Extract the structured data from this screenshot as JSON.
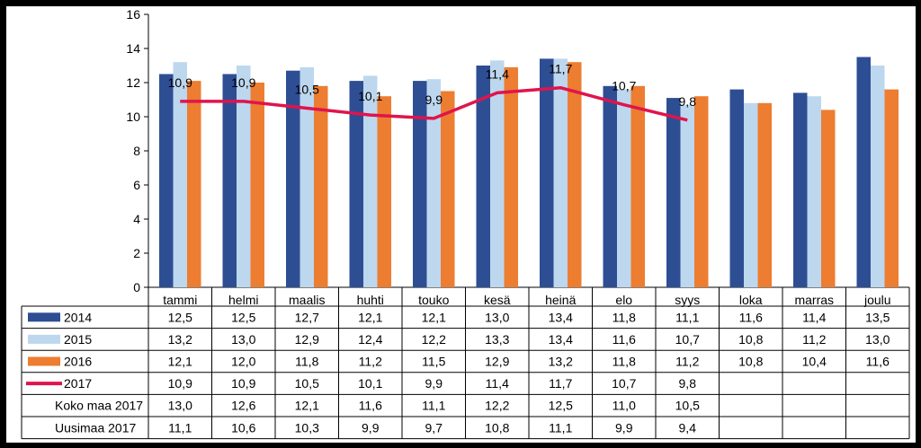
{
  "chart_data": {
    "type": "bar",
    "categories": [
      "tammi",
      "helmi",
      "maalis",
      "huhti",
      "touko",
      "kesä",
      "heinä",
      "elo",
      "syys",
      "loka",
      "marras",
      "joulu"
    ],
    "ylim": [
      0,
      16
    ],
    "yticks": [
      "0",
      "2",
      "4",
      "6",
      "8",
      "10",
      "12",
      "14",
      "16"
    ],
    "grid": false,
    "legend": "table-below",
    "series": [
      {
        "name": "2014",
        "kind": "bar",
        "color": "#2E4E94",
        "values": [
          12.5,
          12.5,
          12.7,
          12.1,
          12.1,
          13.0,
          13.4,
          11.8,
          11.1,
          11.6,
          11.4,
          13.5
        ],
        "labels": [
          "12,5",
          "12,5",
          "12,7",
          "12,1",
          "12,1",
          "13,0",
          "13,4",
          "11,8",
          "11,1",
          "11,6",
          "11,4",
          "13,5"
        ]
      },
      {
        "name": "2015",
        "kind": "bar",
        "color": "#BDD7EE",
        "values": [
          13.2,
          13.0,
          12.9,
          12.4,
          12.2,
          13.3,
          13.4,
          11.6,
          10.7,
          10.8,
          11.2,
          13.0
        ],
        "labels": [
          "13,2",
          "13,0",
          "12,9",
          "12,4",
          "12,2",
          "13,3",
          "13,4",
          "11,6",
          "10,7",
          "10,8",
          "11,2",
          "13,0"
        ]
      },
      {
        "name": "2016",
        "kind": "bar",
        "color": "#ED7D31",
        "values": [
          12.1,
          12.0,
          11.8,
          11.2,
          11.5,
          12.9,
          13.2,
          11.8,
          11.2,
          10.8,
          10.4,
          11.6
        ],
        "labels": [
          "12,1",
          "12,0",
          "11,8",
          "11,2",
          "11,5",
          "12,9",
          "13,2",
          "11,8",
          "11,2",
          "10,8",
          "10,4",
          "11,6"
        ]
      },
      {
        "name": "2017",
        "kind": "line",
        "color": "#E0144C",
        "values": [
          10.9,
          10.9,
          10.5,
          10.1,
          9.9,
          11.4,
          11.7,
          10.7,
          9.8,
          null,
          null,
          null
        ],
        "labels": [
          "10,9",
          "10,9",
          "10,5",
          "10,1",
          "9,9",
          "11,4",
          "11,7",
          "10,7",
          "9,8",
          "",
          "",
          ""
        ]
      },
      {
        "name": "Koko maa 2017",
        "kind": "table",
        "values": [
          13.0,
          12.6,
          12.1,
          11.6,
          11.1,
          12.2,
          12.5,
          11.0,
          10.5,
          null,
          null,
          null
        ],
        "labels": [
          "13,0",
          "12,6",
          "12,1",
          "11,6",
          "11,1",
          "12,2",
          "12,5",
          "11,0",
          "10,5",
          "",
          "",
          ""
        ]
      },
      {
        "name": "Uusimaa 2017",
        "kind": "table",
        "values": [
          11.1,
          10.6,
          10.3,
          9.9,
          9.7,
          10.8,
          11.1,
          9.9,
          9.4,
          null,
          null,
          null
        ],
        "labels": [
          "11,1",
          "10,6",
          "10,3",
          "9,9",
          "9,7",
          "10,8",
          "11,1",
          "9,9",
          "9,4",
          "",
          "",
          ""
        ]
      }
    ]
  }
}
